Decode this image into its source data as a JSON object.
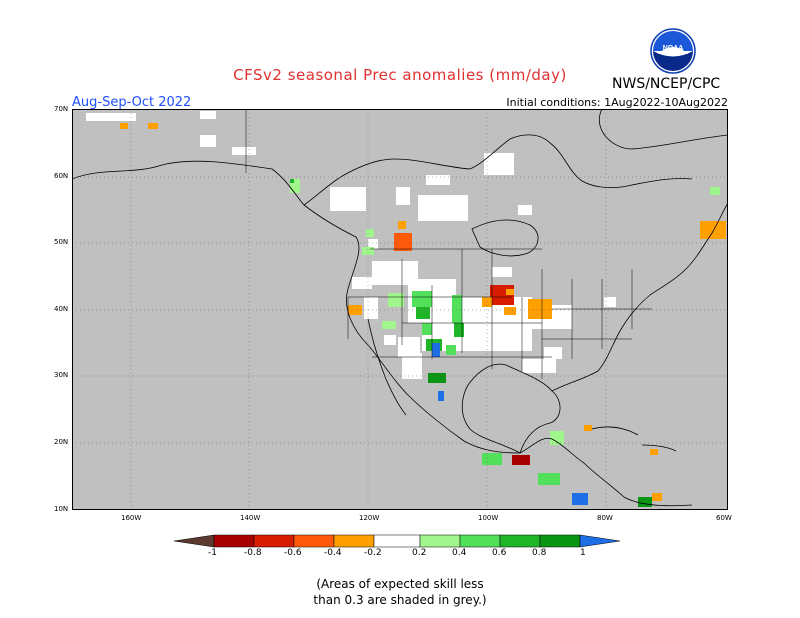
{
  "title": "CFSv2 seasonal Prec anomalies (mm/day)",
  "agency": "NWS/NCEP/CPC",
  "season": "Aug-Sep-Oct 2022",
  "initial_conditions": "Initial conditions: 1Aug2022-10Aug2022",
  "logo_text": "NOAA",
  "lat_labels": [
    "70N",
    "60N",
    "50N",
    "40N",
    "30N",
    "20N",
    "10N"
  ],
  "lon_labels": [
    "160W",
    "140W",
    "120W",
    "100W",
    "80W",
    "60W"
  ],
  "colorbar": {
    "labels": [
      "-1",
      "-0.8",
      "-0.6",
      "-0.4",
      "-0.2",
      "0.2",
      "0.4",
      "0.6",
      "0.8",
      "1"
    ],
    "colors": [
      "#5c3a2e",
      "#a80000",
      "#d81c00",
      "#ff5a0a",
      "#ffa000",
      "#ffffff",
      "#a0f58c",
      "#52e05a",
      "#20b428",
      "#0a9614",
      "#1e6ee6"
    ]
  },
  "note_line1": "(Areas of expected skill less",
  "note_line2": "than 0.3 are shaded in grey.)",
  "colors": {
    "grey_skill": "#c0c0c0",
    "title_red": "#e03030",
    "season_blue": "#1f4fff"
  }
}
